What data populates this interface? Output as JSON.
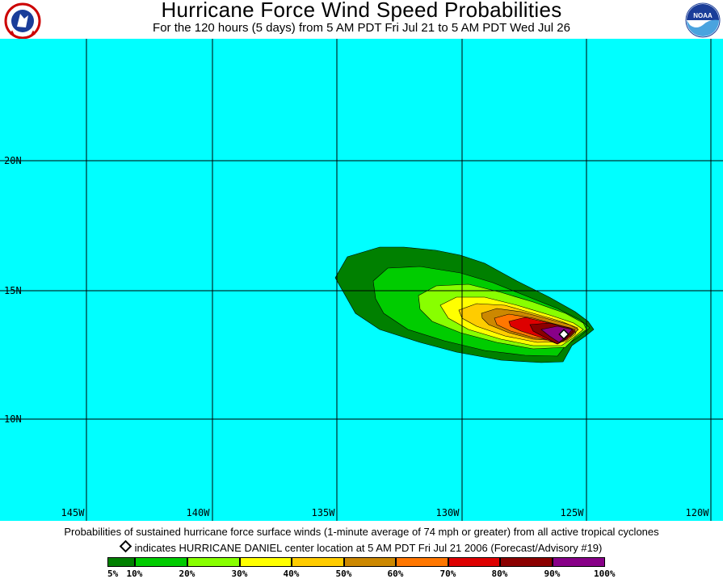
{
  "header": {
    "title": "Hurricane Force Wind Speed Probabilities",
    "subtitle": "For the 120 hours (5 days) from 5 AM PDT Fri Jul 21 to 5 AM PDT Wed Jul 26",
    "left_logo": {
      "icon": "nws-logo-icon",
      "text": "NATIONAL WEATHER SERVICE"
    },
    "right_logo": {
      "icon": "noaa-logo-icon",
      "text": "NOAA"
    }
  },
  "map": {
    "ocean_color": "#00ffff",
    "grid_color": "#000000",
    "longitude_labels": [
      "145W",
      "140W",
      "135W",
      "130W",
      "125W",
      "120W"
    ],
    "latitude_labels": [
      "20N",
      "15N",
      "10N"
    ],
    "storm_center_marker": "diamond-marker-icon"
  },
  "footer": {
    "footnote": "Probabilities of sustained hurricane force surface winds (1-minute average of 74 mph or greater) from all active tropical cyclones",
    "marker_text": "indicates HURRICANE DANIEL center location at 5 AM PDT Fri Jul 21 2006 (Forecast/Advisory #19)"
  },
  "legend": {
    "bins": [
      {
        "color": "#008000"
      },
      {
        "color": "#00cc00"
      },
      {
        "color": "#88ff00"
      },
      {
        "color": "#ffff00"
      },
      {
        "color": "#ffcc00"
      },
      {
        "color": "#cc8800"
      },
      {
        "color": "#ff7700"
      },
      {
        "color": "#dd0000"
      },
      {
        "color": "#8b0000"
      },
      {
        "color": "#880088"
      }
    ],
    "labels": [
      "5%",
      "10%",
      "20%",
      "30%",
      "40%",
      "50%",
      "60%",
      "70%",
      "80%",
      "90%",
      "100%"
    ]
  }
}
